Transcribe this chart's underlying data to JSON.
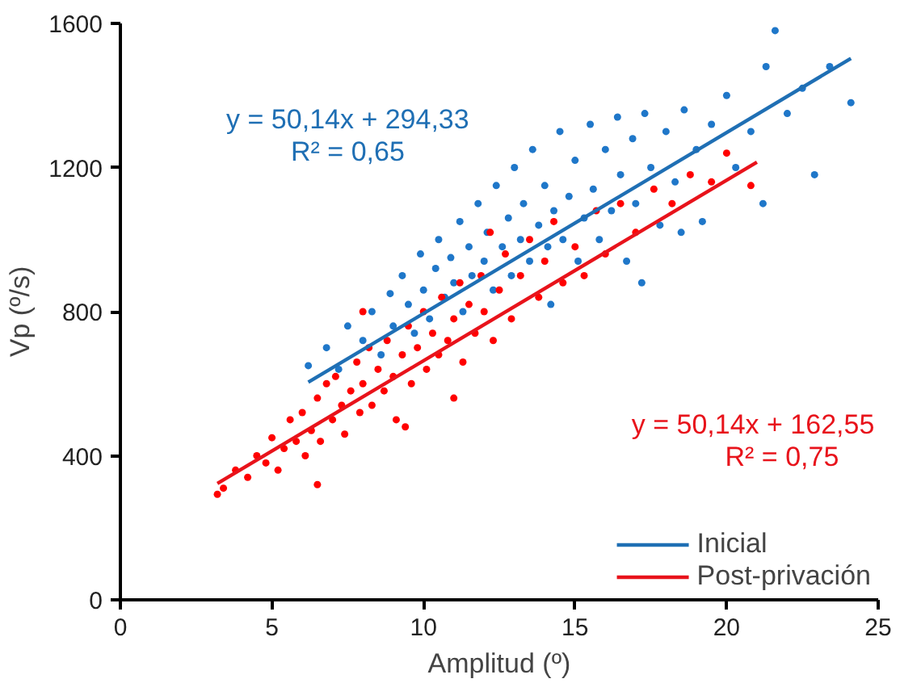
{
  "chart_data": {
    "type": "scatter",
    "xlabel": "Amplitud (º)",
    "ylabel": "Vp (º/s)",
    "xlim": [
      0,
      25
    ],
    "xticks": [
      0,
      5,
      10,
      15,
      20,
      25
    ],
    "ylim": [
      0,
      1600
    ],
    "yticks": [
      0,
      400,
      800,
      1200,
      1600
    ],
    "grid": false,
    "legend": "bottom right",
    "annotations": [
      "y = 50,14x + 294,33\nR² = 0,65",
      "y = 50,14x + 162,55\nR² = 0,75"
    ],
    "series": [
      {
        "color": "#1f77c9",
        "marker": "circle",
        "x": [
          6.2,
          6.8,
          7.2,
          7.5,
          8.0,
          8.3,
          8.6,
          8.9,
          9.0,
          9.3,
          9.5,
          9.7,
          9.9,
          10.0,
          10.2,
          10.4,
          10.5,
          10.7,
          10.9,
          11.0,
          11.2,
          11.3,
          11.5,
          11.6,
          11.8,
          12.0,
          12.1,
          12.3,
          12.4,
          12.6,
          12.8,
          12.9,
          13.0,
          13.2,
          13.3,
          13.5,
          13.6,
          13.8,
          14.0,
          14.1,
          14.3,
          14.5,
          14.6,
          14.8,
          15.0,
          15.1,
          15.3,
          15.5,
          15.6,
          15.8,
          16.0,
          16.2,
          16.4,
          16.5,
          16.7,
          16.9,
          17.0,
          17.3,
          17.5,
          17.8,
          18.0,
          18.3,
          18.6,
          19.0,
          19.2,
          19.5,
          20.0,
          20.3,
          20.8,
          21.3,
          21.6,
          21.2,
          22.0,
          22.5,
          22.9,
          23.4,
          24.1,
          18.5,
          17.2,
          14.2
        ],
        "values": [
          650,
          700,
          640,
          760,
          720,
          800,
          680,
          850,
          760,
          900,
          820,
          740,
          960,
          860,
          780,
          920,
          1000,
          840,
          950,
          880,
          1050,
          800,
          980,
          900,
          1100,
          940,
          1020,
          860,
          1150,
          980,
          1060,
          900,
          1200,
          1000,
          1100,
          940,
          1250,
          1040,
          1150,
          980,
          1080,
          1300,
          1000,
          1120,
          1220,
          940,
          1060,
          1320,
          1140,
          1000,
          1250,
          1080,
          1340,
          1180,
          940,
          1280,
          1100,
          1350,
          1200,
          1040,
          1300,
          1160,
          1360,
          1250,
          1050,
          1320,
          1400,
          1200,
          1300,
          1480,
          1580,
          1100,
          1350,
          1420,
          1180,
          1480,
          1380,
          1020,
          880,
          820
        ]
      },
      {
        "color": "#ff0000",
        "marker": "circle",
        "x": [
          3.2,
          3.4,
          3.8,
          4.2,
          4.5,
          4.8,
          5.0,
          5.2,
          5.4,
          5.6,
          5.8,
          6.0,
          6.1,
          6.3,
          6.5,
          6.6,
          6.8,
          7.0,
          7.1,
          7.3,
          7.4,
          7.6,
          7.8,
          7.9,
          8.0,
          8.2,
          8.3,
          8.5,
          8.7,
          8.8,
          9.0,
          9.1,
          9.3,
          9.5,
          9.6,
          9.8,
          10.0,
          10.1,
          10.3,
          10.5,
          10.6,
          10.8,
          11.0,
          11.2,
          11.3,
          11.5,
          11.7,
          11.9,
          12.0,
          12.3,
          12.5,
          12.7,
          12.9,
          13.2,
          13.5,
          13.8,
          14.0,
          14.3,
          14.6,
          15.0,
          15.3,
          15.7,
          16.0,
          16.5,
          17.0,
          17.6,
          18.2,
          18.8,
          19.5,
          20.0,
          20.8,
          11.0,
          9.4,
          12.2,
          8.0,
          6.5
        ],
        "values": [
          293,
          310,
          360,
          340,
          400,
          380,
          450,
          360,
          420,
          500,
          440,
          520,
          400,
          470,
          560,
          440,
          600,
          500,
          620,
          540,
          460,
          580,
          660,
          520,
          600,
          700,
          540,
          640,
          580,
          720,
          620,
          500,
          680,
          760,
          600,
          700,
          800,
          640,
          740,
          680,
          840,
          720,
          780,
          880,
          660,
          820,
          740,
          900,
          800,
          720,
          860,
          960,
          780,
          900,
          1000,
          840,
          940,
          1050,
          880,
          980,
          900,
          1080,
          960,
          1100,
          1020,
          1140,
          1100,
          1180,
          1160,
          1240,
          1150,
          560,
          480,
          1020,
          800,
          320
        ]
      },
      {
        "type": "line",
        "name": "Inicial",
        "color": "#1f6fb4",
        "marker": "none",
        "x": [
          6.2,
          24.1
        ],
        "values": [
          604,
          1503
        ]
      },
      {
        "type": "line",
        "name": "Post-privación",
        "color": "#e8131b",
        "marker": "none",
        "x": [
          3.2,
          21.0
        ],
        "values": [
          323,
          1215
        ]
      }
    ]
  }
}
